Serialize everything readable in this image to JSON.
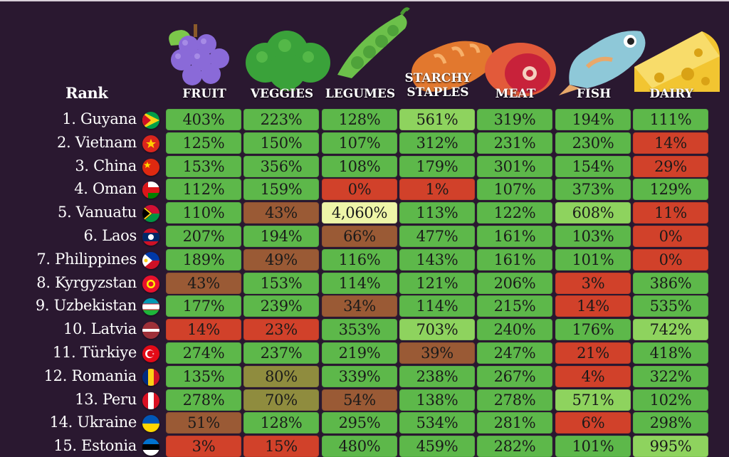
{
  "chart_data": {
    "type": "table",
    "row_header": "Rank",
    "columns": [
      "FRUIT",
      "VEGGIES",
      "LEGUMES",
      "STARCHY STAPLES",
      "MEAT",
      "FISH",
      "DAIRY"
    ],
    "column_icons": [
      "grapes-icon",
      "broccoli-icon",
      "peapod-icon",
      "bread-icon",
      "ham-icon",
      "fish-icon",
      "cheese-icon"
    ],
    "rows": [
      {
        "rank": "1. Guyana",
        "flag": "guyana",
        "values": [
          "403%",
          "223%",
          "128%",
          "561%",
          "319%",
          "194%",
          "111%"
        ]
      },
      {
        "rank": "2. Vietnam",
        "flag": "vietnam",
        "values": [
          "125%",
          "150%",
          "107%",
          "312%",
          "231%",
          "230%",
          "14%"
        ]
      },
      {
        "rank": "3. China",
        "flag": "china",
        "values": [
          "153%",
          "356%",
          "108%",
          "179%",
          "301%",
          "154%",
          "29%"
        ]
      },
      {
        "rank": "4. Oman",
        "flag": "oman",
        "values": [
          "112%",
          "159%",
          "0%",
          "1%",
          "107%",
          "373%",
          "129%"
        ]
      },
      {
        "rank": "5. Vanuatu",
        "flag": "vanuatu",
        "values": [
          "110%",
          "43%",
          "4,060%",
          "113%",
          "122%",
          "608%",
          "11%"
        ]
      },
      {
        "rank": "6. Laos",
        "flag": "laos",
        "values": [
          "207%",
          "194%",
          "66%",
          "477%",
          "161%",
          "103%",
          "0%"
        ]
      },
      {
        "rank": "7. Philippines",
        "flag": "philippines",
        "values": [
          "189%",
          "49%",
          "116%",
          "143%",
          "161%",
          "101%",
          "0%"
        ]
      },
      {
        "rank": "8. Kyrgyzstan",
        "flag": "kyrgyzstan",
        "values": [
          "43%",
          "153%",
          "114%",
          "121%",
          "206%",
          "3%",
          "386%"
        ]
      },
      {
        "rank": "9. Uzbekistan",
        "flag": "uzbekistan",
        "values": [
          "177%",
          "239%",
          "34%",
          "114%",
          "215%",
          "14%",
          "535%"
        ]
      },
      {
        "rank": "10. Latvia",
        "flag": "latvia",
        "values": [
          "14%",
          "23%",
          "353%",
          "703%",
          "240%",
          "176%",
          "742%"
        ]
      },
      {
        "rank": "11. Türkiye",
        "flag": "turkiye",
        "values": [
          "274%",
          "237%",
          "219%",
          "39%",
          "247%",
          "21%",
          "418%"
        ]
      },
      {
        "rank": "12. Romania",
        "flag": "romania",
        "values": [
          "135%",
          "80%",
          "339%",
          "238%",
          "267%",
          "4%",
          "322%"
        ]
      },
      {
        "rank": "13. Peru",
        "flag": "peru",
        "values": [
          "278%",
          "70%",
          "54%",
          "138%",
          "278%",
          "571%",
          "102%"
        ]
      },
      {
        "rank": "14. Ukraine",
        "flag": "ukraine",
        "values": [
          "51%",
          "128%",
          "295%",
          "534%",
          "281%",
          "6%",
          "298%"
        ]
      },
      {
        "rank": "15. Estonia",
        "flag": "estonia",
        "values": [
          "3%",
          "15%",
          "480%",
          "459%",
          "282%",
          "101%",
          "995%"
        ]
      }
    ],
    "colors": {
      "red": "#d1412a",
      "brown": "#9a5a35",
      "olive": "#8f8c3e",
      "green": "#5db84a",
      "light_green": "#8ed35e",
      "pale": "#eef5a8"
    }
  }
}
